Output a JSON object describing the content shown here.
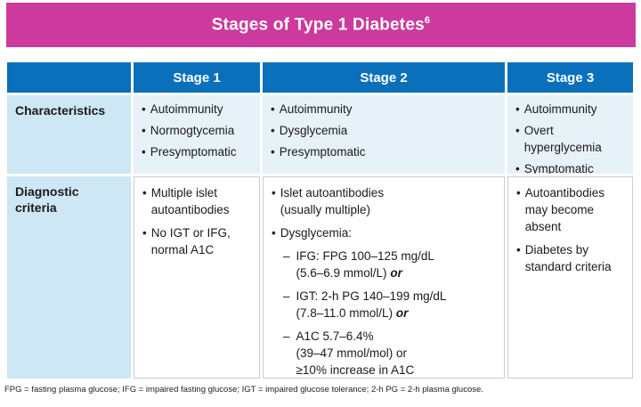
{
  "title": {
    "text": "Stages of Type 1 Diabetes",
    "superscript": "6"
  },
  "colors": {
    "banner": "#cb3a9c",
    "header_blue": "#0b70bc",
    "label_cell": "#cde7f4",
    "row1_cell": "#e6f1f8",
    "border": "#c9ced3"
  },
  "table": {
    "column_headers": [
      "",
      "Stage 1",
      "Stage 2",
      "Stage 3"
    ],
    "rows": [
      {
        "label": "Characteristics",
        "cells": [
          {
            "bullets": [
              {
                "lines": [
                  "Autoimmunity"
                ]
              },
              {
                "lines": [
                  "Normogtycemia"
                ]
              },
              {
                "lines": [
                  "Presymptomatic"
                ]
              }
            ]
          },
          {
            "bullets": [
              {
                "lines": [
                  "Autoimmunity"
                ]
              },
              {
                "lines": [
                  "Dysglycemia"
                ]
              },
              {
                "lines": [
                  "Presymptomatic"
                ]
              }
            ]
          },
          {
            "bullets": [
              {
                "lines": [
                  "Autoimmunity"
                ]
              },
              {
                "lines": [
                  "Overt",
                  "hyperglycemia"
                ]
              },
              {
                "lines": [
                  "Symptomatic"
                ]
              }
            ]
          }
        ]
      },
      {
        "label": "Diagnostic criteria",
        "cells": [
          {
            "bullets": [
              {
                "lines": [
                  "Multiple islet",
                  "autoantibodies"
                ]
              },
              {
                "lines": [
                  "No IGT or IFG,",
                  "normal A1C"
                ]
              }
            ]
          },
          {
            "bullets": [
              {
                "lines": [
                  "Islet autoantibodies",
                  "(usually multiple)"
                ]
              },
              {
                "lines": [
                  "Dysglycemia:"
                ],
                "subs": [
                  {
                    "lines": [
                      "IFG: FPG 100–125 mg/dL",
                      "(5.6–6.9 mmol/L)"
                    ],
                    "or": "or"
                  },
                  {
                    "lines": [
                      "IGT: 2-h PG 140–199 mg/dL",
                      "(7.8–11.0 mmol/L)"
                    ],
                    "or": "or"
                  },
                  {
                    "lines": [
                      "A1C 5.7–6.4%",
                      "(39–47 mmol/mol) or",
                      "≥10% increase in A1C"
                    ]
                  }
                ]
              }
            ]
          },
          {
            "bullets": [
              {
                "lines": [
                  "Autoantibodies",
                  "may become",
                  "absent"
                ]
              },
              {
                "lines": [
                  "Diabetes by",
                  "standard criteria"
                ]
              }
            ]
          }
        ]
      }
    ]
  },
  "footnote": "FPG = fasting plasma glucose; IFG = impaired fasting glucose; IGT = impaired glucose tolerance; 2-h PG = 2-h plasma glucose."
}
